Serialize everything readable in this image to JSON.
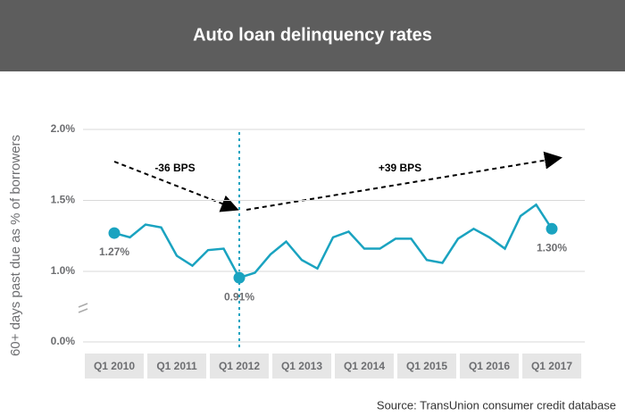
{
  "chart_data": {
    "type": "line",
    "title": "Auto loan delinquency rates",
    "y_label": "60+ days past due as % of borrowers",
    "source": "Source: TransUnion consumer credit database",
    "annotations": [
      "-36 BPS",
      "+39 BPS"
    ],
    "categories": [
      "Q1 2010",
      null,
      null,
      null,
      "Q1 2011",
      null,
      null,
      null,
      "Q1 2012",
      null,
      null,
      null,
      "Q1 2013",
      null,
      null,
      null,
      "Q1 2014",
      null,
      null,
      null,
      "Q1 2015",
      null,
      null,
      null,
      "Q1 2016",
      null,
      null,
      null,
      "Q1 2017"
    ],
    "series": [
      {
        "color": "#1aa3c0",
        "values": [
          1.27,
          1.24,
          1.33,
          1.31,
          1.11,
          1.04,
          1.15,
          1.16,
          0.91,
          0.98,
          1.12,
          1.21,
          1.08,
          1.02,
          1.24,
          1.28,
          1.16,
          1.16,
          1.23,
          1.23,
          1.08,
          1.06,
          1.23,
          1.3,
          1.24,
          1.16,
          1.39,
          1.47,
          1.3
        ],
        "value_labels": [
          "1.27%",
          null,
          null,
          null,
          null,
          null,
          null,
          null,
          "0.91%",
          null,
          null,
          null,
          null,
          null,
          null,
          null,
          null,
          null,
          null,
          null,
          null,
          null,
          null,
          null,
          null,
          null,
          null,
          null,
          "1.30%"
        ]
      }
    ],
    "ylim": [
      0,
      2.0
    ],
    "axis_break": [
      0,
      1.0
    ],
    "yticks": [
      {
        "value": 0,
        "label": "0.0%"
      },
      {
        "value": 1.0,
        "label": "1.0%"
      },
      {
        "value": 1.5,
        "label": "1.5%"
      },
      {
        "value": 2.0,
        "label": "2.0%"
      }
    ],
    "grid": true
  }
}
